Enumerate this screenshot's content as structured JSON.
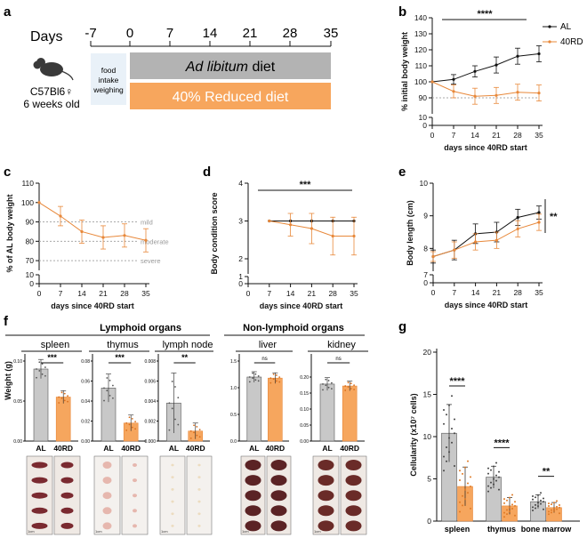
{
  "colors": {
    "al": "#111111",
    "rd": "#e8883a",
    "rd_fill": "#f6a65e",
    "grey_fill": "#c8c8c8",
    "ref_line": "#aaaaaa",
    "timeline_al": "#b3b3b3",
    "timeline_rd": "#f7a65d",
    "food_box": "#e9f1f8"
  },
  "panel_a": {
    "label": "a",
    "days_label": "Days",
    "day_ticks": [
      "-7",
      "0",
      "7",
      "14",
      "21",
      "28",
      "35"
    ],
    "food_box_text": [
      "food",
      "intake",
      "weighing"
    ],
    "al_diet_italic": "Ad libitum",
    "al_diet_rest": " diet",
    "rd_diet": "40% Reduced diet",
    "mouse_strain": "C57Bl6♀",
    "mouse_age": "6 weeks old",
    "mouse_icon": "mouse-icon"
  },
  "panel_b": {
    "label": "b",
    "ylabel": "% initial body weight",
    "xlabel": "days since 40RD start",
    "sig": "****",
    "legend_al": "AL",
    "legend_rd": "40RD",
    "xticks": [
      0,
      7,
      14,
      21,
      28,
      35
    ],
    "yticks_upper": [
      90,
      100,
      110,
      120,
      130,
      140
    ],
    "yticks_lower": [
      0,
      10
    ],
    "ref_y": 90,
    "chart_data": {
      "type": "line",
      "x": [
        0,
        7,
        14,
        21,
        28,
        35
      ],
      "series": [
        {
          "name": "AL",
          "values": [
            100,
            101.5,
            106.5,
            110.5,
            116,
            117.5
          ],
          "err": [
            0,
            3,
            3.5,
            5,
            5,
            5
          ]
        },
        {
          "name": "40RD",
          "values": [
            100,
            94,
            91,
            91.5,
            93.5,
            93
          ],
          "err": [
            0,
            4,
            5,
            5,
            5,
            5
          ]
        }
      ]
    }
  },
  "panel_c": {
    "label": "c",
    "ylabel": "% of AL body weight",
    "xlabel": "days since 40RD start",
    "xticks": [
      0,
      7,
      14,
      21,
      28,
      35
    ],
    "yticks_upper": [
      70,
      80,
      90,
      100,
      110
    ],
    "yticks_lower": [
      0,
      10
    ],
    "ref_lines": [
      {
        "y": 90,
        "label": "mild"
      },
      {
        "y": 80,
        "label": "moderate"
      },
      {
        "y": 70,
        "label": "severe"
      }
    ],
    "chart_data": {
      "type": "line",
      "x": [
        0,
        7,
        14,
        21,
        28,
        35
      ],
      "series": [
        {
          "name": "40RD",
          "values": [
            100,
            93,
            85,
            82,
            83,
            80.5
          ],
          "err": [
            0,
            5,
            6,
            6,
            6,
            6
          ]
        }
      ]
    }
  },
  "panel_d": {
    "label": "d",
    "ylabel": "Body condition score",
    "xlabel": "days since 40RD start",
    "sig": "***",
    "xticks": [
      0,
      7,
      14,
      21,
      28,
      35
    ],
    "yticks_upper": [
      2,
      3,
      4
    ],
    "yticks_lower": [
      0,
      1
    ],
    "chart_data": {
      "type": "line",
      "x": [
        7,
        14,
        21,
        28,
        35
      ],
      "series": [
        {
          "name": "AL",
          "values": [
            3,
            3,
            3,
            3,
            3
          ],
          "err": [
            0,
            0,
            0,
            0,
            0
          ]
        },
        {
          "name": "40RD",
          "values": [
            3,
            2.9,
            2.8,
            2.6,
            2.6
          ],
          "err": [
            0,
            0.3,
            0.4,
            0.5,
            0.5
          ]
        }
      ]
    }
  },
  "panel_e": {
    "label": "e",
    "ylabel": "Body length (cm)",
    "xlabel": "days since 40RD start",
    "sig": "**",
    "xticks": [
      0,
      7,
      14,
      21,
      28,
      35
    ],
    "yticks_upper": [
      8,
      9,
      10
    ],
    "yticks_lower": [
      0,
      7
    ],
    "chart_data": {
      "type": "line",
      "x": [
        0,
        7,
        14,
        21,
        28,
        35
      ],
      "series": [
        {
          "name": "AL",
          "values": [
            7.75,
            7.95,
            8.45,
            8.5,
            8.95,
            9.1
          ],
          "err": [
            0.2,
            0.3,
            0.3,
            0.3,
            0.25,
            0.2
          ]
        },
        {
          "name": "40RD",
          "values": [
            7.75,
            7.95,
            8.2,
            8.25,
            8.6,
            8.8
          ],
          "err": [
            0.15,
            0.25,
            0.25,
            0.25,
            0.25,
            0.25
          ]
        }
      ]
    }
  },
  "panel_f": {
    "label": "f",
    "group_lymphoid": "Lymphoid organs",
    "group_nonlymphoid": "Non-lymphoid organs",
    "ylabel": "Weight (g)",
    "organs": [
      {
        "name": "spleen",
        "sig": "***",
        "ymax": 0.1,
        "yticks": [
          "0.00",
          "0.05",
          "0.10"
        ],
        "al": 0.09,
        "al_err": 0.012,
        "rd": 0.055,
        "rd_err": 0.008
      },
      {
        "name": "thymus",
        "sig": "***",
        "ymax": 0.08,
        "yticks": [
          "0.00",
          "0.02",
          "0.04",
          "0.06",
          "0.08"
        ],
        "al": 0.053,
        "al_err": 0.014,
        "rd": 0.018,
        "rd_err": 0.008
      },
      {
        "name": "lymph node",
        "sig": "**",
        "ymax": 0.008,
        "yticks": [
          "0.000",
          "0.002",
          "0.004",
          "0.006",
          "0.008"
        ],
        "al": 0.0038,
        "al_err": 0.003,
        "rd": 0.001,
        "rd_err": 0.0008
      },
      {
        "name": "liver",
        "sig": "ns",
        "ymax": 1.5,
        "yticks": [
          "0.0",
          "0.5",
          "1.0",
          "1.5"
        ],
        "al": 1.2,
        "al_err": 0.1,
        "rd": 1.18,
        "rd_err": 0.1
      },
      {
        "name": "kidney",
        "sig": "ns",
        "ymax": 0.25,
        "yticks": [
          "0.00",
          "0.05",
          "0.10",
          "0.15",
          "0.20"
        ],
        "al": 0.178,
        "al_err": 0.02,
        "rd": 0.172,
        "rd_err": 0.015
      }
    ],
    "cat_al": "AL",
    "cat_rd": "40RD",
    "scale_label": "1cm"
  },
  "panel_g": {
    "label": "g",
    "ylabel": "Cellularity (x10⁷ cells)",
    "yticks": [
      0,
      5,
      10,
      15,
      20
    ],
    "chart_data": {
      "type": "bar",
      "categories": [
        "spleen",
        "thymus",
        "bone marrow"
      ],
      "sig": [
        "****",
        "****",
        "**"
      ],
      "series": [
        {
          "name": "AL",
          "values": [
            10.4,
            5.2,
            2.3
          ],
          "err": [
            3.4,
            1.3,
            0.8
          ]
        },
        {
          "name": "40RD",
          "values": [
            4.1,
            1.8,
            1.6
          ],
          "err": [
            2.3,
            1.0,
            0.6
          ]
        }
      ]
    }
  }
}
